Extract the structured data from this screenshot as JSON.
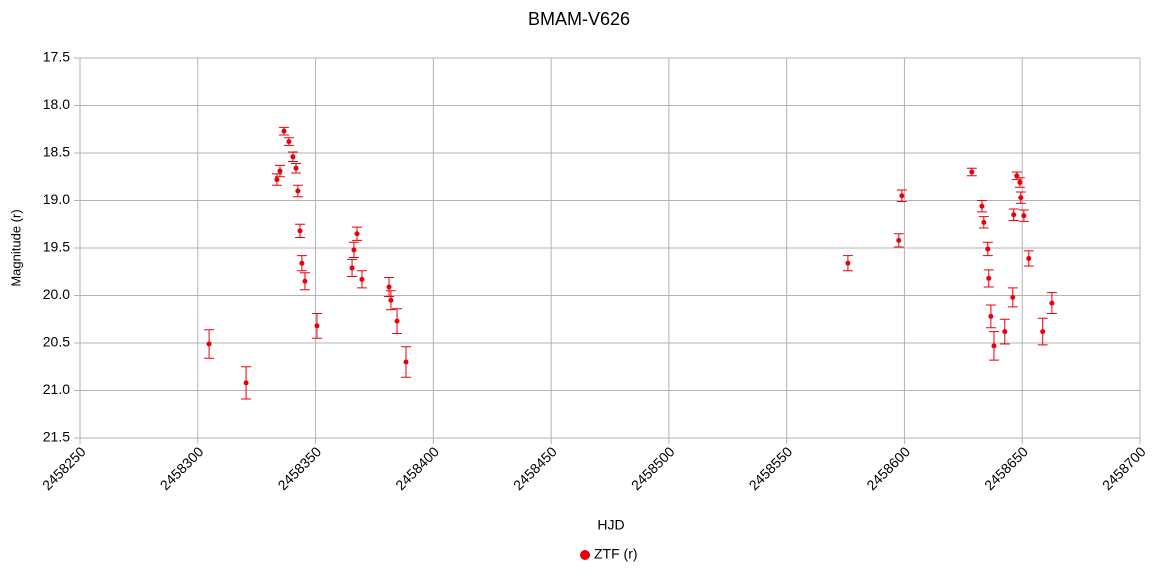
{
  "chart_data": {
    "type": "scatter",
    "title": "BMAM-V626",
    "xlabel": "HJD",
    "ylabel": "Magnitude (r)",
    "xlim": [
      2458250,
      2458700
    ],
    "xticks": [
      2458250,
      2458300,
      2458350,
      2458400,
      2458450,
      2458500,
      2458550,
      2458600,
      2458650,
      2458700
    ],
    "ylim": [
      17.5,
      21.5
    ],
    "yreverse": true,
    "yticks": [
      17.5,
      {
        "value": 18,
        "label": "18.0"
      },
      18.5,
      {
        "value": 19,
        "label": "19.0"
      },
      19.5,
      {
        "value": 20,
        "label": "20.0"
      },
      20.5,
      {
        "value": 21,
        "label": "21.0"
      },
      21.5
    ],
    "grid": true,
    "legend": "bottom",
    "series": [
      {
        "name": "ZTF (r)",
        "color": "#e8000b",
        "x": [
          2458304.8,
          2458320.5,
          2458333.6,
          2458334.9,
          2458336.6,
          2458338.7,
          2458340.4,
          2458341.7,
          2458342.5,
          2458343.4,
          2458344.2,
          2458345.5,
          2458350.6,
          2458365.5,
          2458366.3,
          2458367.6,
          2458369.7,
          2458381.2,
          2458382.0,
          2458384.6,
          2458388.4,
          2458576.0,
          2458597.6,
          2458598.9,
          2458628.6,
          2458632.9,
          2458633.7,
          2458635.4,
          2458635.8,
          2458636.7,
          2458638.0,
          2458642.6,
          2458646.0,
          2458646.4,
          2458647.7,
          2458649.0,
          2458649.4,
          2458650.7,
          2458652.8,
          2458658.7,
          2458662.6
        ],
        "values": [
          20.51,
          20.92,
          18.78,
          18.69,
          18.27,
          18.38,
          18.54,
          18.66,
          18.9,
          19.32,
          19.66,
          19.85,
          20.32,
          19.71,
          19.52,
          19.35,
          19.83,
          19.91,
          20.05,
          20.27,
          20.7,
          19.66,
          19.42,
          18.95,
          18.7,
          19.06,
          19.23,
          19.51,
          19.82,
          20.22,
          20.53,
          20.38,
          20.02,
          19.15,
          18.74,
          18.81,
          18.97,
          19.16,
          19.61,
          20.38,
          20.08
        ],
        "errors": [
          0.15,
          0.17,
          0.06,
          0.06,
          0.04,
          0.04,
          0.05,
          0.05,
          0.06,
          0.07,
          0.08,
          0.09,
          0.13,
          0.09,
          0.08,
          0.07,
          0.09,
          0.1,
          0.1,
          0.13,
          0.16,
          0.08,
          0.07,
          0.06,
          0.04,
          0.06,
          0.06,
          0.07,
          0.09,
          0.12,
          0.15,
          0.13,
          0.1,
          0.06,
          0.04,
          0.05,
          0.06,
          0.06,
          0.08,
          0.14,
          0.11
        ]
      }
    ]
  }
}
